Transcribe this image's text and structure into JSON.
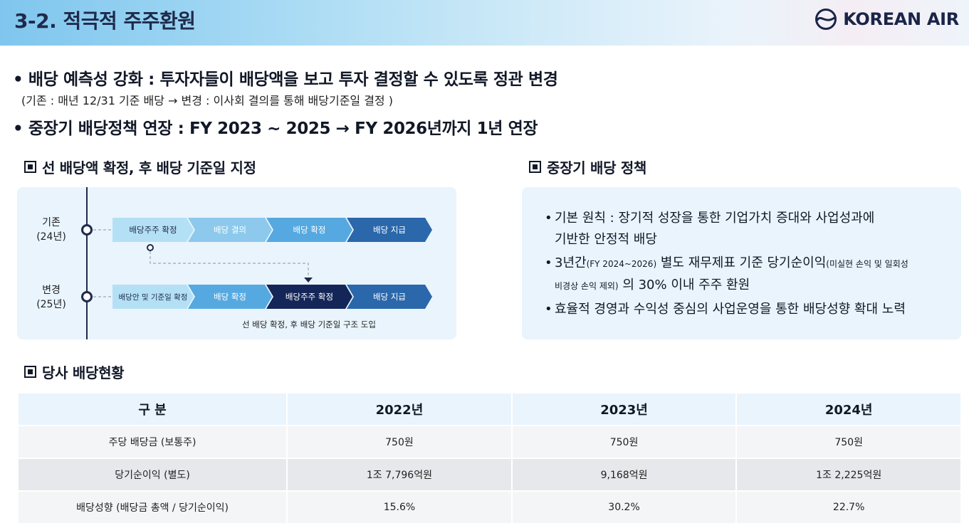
{
  "header": {
    "title": "3-2. 적극적 주주환원",
    "logo_text": "KOREAN AIR"
  },
  "bullets": {
    "main1": "배당 예측성 강화 : 투자자들이 배당액을 보고 투자 결정할 수 있도록 정관 변경",
    "sub1": "(기존 : 매년 12/31 기준 배당 → 변경 : 이사회 결의를 통해 배당기준일 결정 )",
    "main2": "중장기 배당정책 연장 : FY 2023 ~ 2025 → FY 2026년까지 1년 연장",
    "marker": "•"
  },
  "sections": {
    "dividend_first": "선 배당액 확정, 후 배당 기준일 지정",
    "midterm_policy": "중장기 배당 정책",
    "status": "당사 배당현황"
  },
  "timeline": {
    "before_label_1": "기존",
    "before_label_2": "(24년)",
    "after_label_1": "변경",
    "after_label_2": "(25년)",
    "before_steps": [
      "배당주주 확정",
      "배당 결의",
      "배당 확정",
      "배당 지급"
    ],
    "after_steps": [
      "배당안 및 기준일 확정",
      "배당 확정",
      "배당주주 확정",
      "배당 지급"
    ],
    "note": "선 배당 확정, 후 배당 기준일 구조 도입"
  },
  "policy": {
    "item1_line1": "기본 원칙 : 장기적 성장을 통한 기업가치 증대와 사업성과에",
    "item1_line2": "기반한 안정적 배당",
    "item2_a": "3년간",
    "item2_b": "(FY 2024~2026)",
    "item2_c": " 별도 재무제표 기준 당기순이익",
    "item2_d": "(미실현 손익 및 일회성",
    "item2_e": "비경상 손익 제외)",
    "item2_f": " 의 30% 이내 주주 환원",
    "item3": "효율적 경영과 수익성 중심의 사업운영을 통한 배당성향 확대 노력"
  },
  "table": {
    "headers": [
      "구 분",
      "2022년",
      "2023년",
      "2024년"
    ],
    "rows": [
      [
        "주당 배당금 (보통주)",
        "750원",
        "750원",
        "750원"
      ],
      [
        "당기순이익 (별도)",
        "1조 7,796억원",
        "9,168억원",
        "1조 2,225억원"
      ],
      [
        "배당성향 (배당금 총액 / 당기순이익)",
        "15.6%",
        "30.2%",
        "22.7%"
      ]
    ]
  }
}
